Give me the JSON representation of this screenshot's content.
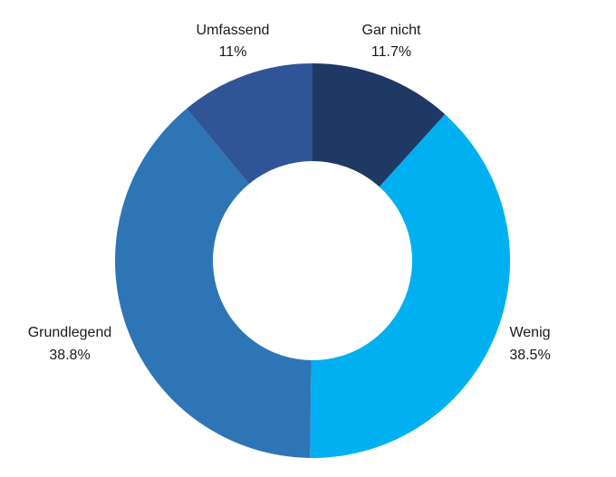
{
  "chart_data": {
    "type": "pie",
    "donut": true,
    "legend": "none",
    "slices": [
      {
        "label": "Gar nicht",
        "value": 11.7,
        "display": "11.7%",
        "color": "#1f3864"
      },
      {
        "label": "Wenig",
        "value": 38.5,
        "display": "38.5%",
        "color": "#00b0f0"
      },
      {
        "label": "Grundlegend",
        "value": 38.8,
        "display": "38.8%",
        "color": "#2e75b6"
      },
      {
        "label": "Umfassend",
        "value": 11,
        "display": "11%",
        "color": "#2f5597"
      }
    ]
  }
}
